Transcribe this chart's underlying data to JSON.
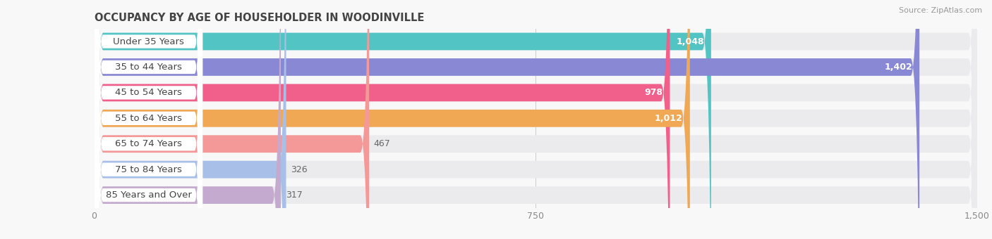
{
  "title": "OCCUPANCY BY AGE OF HOUSEHOLDER IN WOODINVILLE",
  "source": "Source: ZipAtlas.com",
  "categories": [
    "Under 35 Years",
    "35 to 44 Years",
    "45 to 54 Years",
    "55 to 64 Years",
    "65 to 74 Years",
    "75 to 84 Years",
    "85 Years and Over"
  ],
  "values": [
    1048,
    1402,
    978,
    1012,
    467,
    326,
    317
  ],
  "bar_colors": [
    "#52C4C4",
    "#8888D4",
    "#F0608A",
    "#F0A855",
    "#F49898",
    "#A8C0E8",
    "#C4AACE"
  ],
  "bg_colors": [
    "#E0F5F5",
    "#E0E0F5",
    "#FAD4E0",
    "#FAE8D4",
    "#FAE0E0",
    "#DCE8F8",
    "#EAE0F0"
  ],
  "track_color": "#EBEBEE",
  "value_inside_color": "#ffffff",
  "value_outside_color": "#666666",
  "xlim": [
    0,
    1500
  ],
  "xticks": [
    0,
    750,
    1500
  ],
  "bg_page": "#F8F8F8",
  "title_fontsize": 10.5,
  "label_fontsize": 9.5,
  "value_fontsize": 9
}
